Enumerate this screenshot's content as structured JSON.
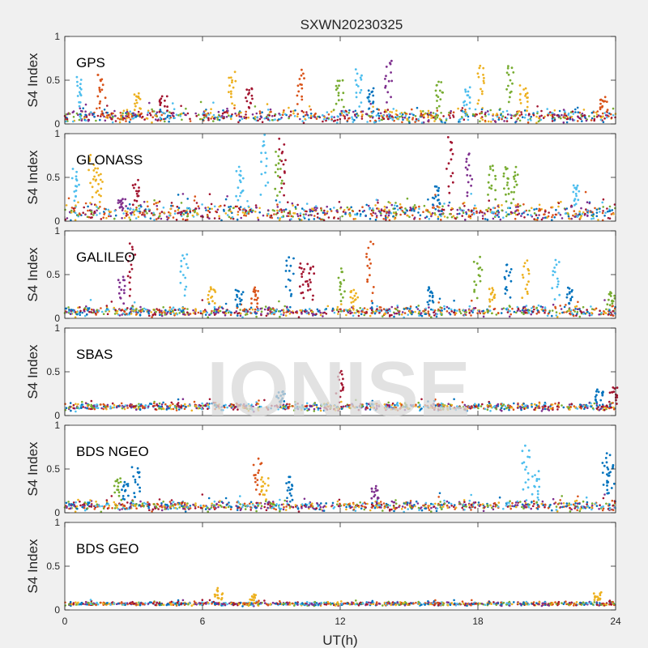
{
  "figure": {
    "title": "SXWN20230325",
    "watermark": "IONISE",
    "xlabel": "UT(h)",
    "background": "#f0f0f0",
    "axes_background": "#ffffff",
    "watermark_color": "#d9d9d9"
  },
  "chart_data": {
    "type": "scatter",
    "title": "SXWN20230325",
    "xlabel": "UT(h)",
    "ylabel": "S4 Index",
    "xlim": [
      0,
      24
    ],
    "ylim": [
      0,
      1
    ],
    "xticks": [
      "0",
      "6",
      "12",
      "18",
      "24"
    ],
    "yticks": [
      "0",
      "0.5",
      "1"
    ],
    "grid": false,
    "palette": [
      "#0072BD",
      "#D95319",
      "#EDB120",
      "#7E2F8E",
      "#77AC30",
      "#4DBEEE",
      "#A2142F"
    ],
    "panels": [
      {
        "label": "GPS",
        "baseline": 0.09,
        "noise": 0.045,
        "spikes": [
          {
            "x": 0.7,
            "y": 0.52,
            "c": 5
          },
          {
            "x": 1.6,
            "y": 0.57,
            "c": 1
          },
          {
            "x": 3.2,
            "y": 0.35,
            "c": 2
          },
          {
            "x": 4.3,
            "y": 0.32,
            "c": 6
          },
          {
            "x": 7.3,
            "y": 0.57,
            "c": 2
          },
          {
            "x": 8.0,
            "y": 0.42,
            "c": 6
          },
          {
            "x": 10.3,
            "y": 0.6,
            "c": 1
          },
          {
            "x": 12.0,
            "y": 0.52,
            "c": 4
          },
          {
            "x": 12.8,
            "y": 0.6,
            "c": 5
          },
          {
            "x": 13.3,
            "y": 0.39,
            "c": 0
          },
          {
            "x": 14.1,
            "y": 0.72,
            "c": 3
          },
          {
            "x": 16.3,
            "y": 0.48,
            "c": 4
          },
          {
            "x": 17.5,
            "y": 0.4,
            "c": 5
          },
          {
            "x": 18.1,
            "y": 0.68,
            "c": 2
          },
          {
            "x": 19.4,
            "y": 0.68,
            "c": 4
          },
          {
            "x": 20.0,
            "y": 0.42,
            "c": 2
          },
          {
            "x": 23.5,
            "y": 0.3,
            "c": 1
          }
        ]
      },
      {
        "label": "GLONASS",
        "baseline": 0.1,
        "noise": 0.06,
        "spikes": [
          {
            "x": 0.5,
            "y": 0.58,
            "c": 5
          },
          {
            "x": 1.2,
            "y": 0.76,
            "c": 2
          },
          {
            "x": 1.5,
            "y": 0.62,
            "c": 2
          },
          {
            "x": 2.5,
            "y": 0.25,
            "c": 3
          },
          {
            "x": 3.1,
            "y": 0.45,
            "c": 6
          },
          {
            "x": 7.6,
            "y": 0.6,
            "c": 5
          },
          {
            "x": 8.7,
            "y": 0.97,
            "c": 5
          },
          {
            "x": 9.3,
            "y": 0.78,
            "c": 4
          },
          {
            "x": 9.5,
            "y": 0.92,
            "c": 6
          },
          {
            "x": 16.2,
            "y": 0.4,
            "c": 0
          },
          {
            "x": 16.8,
            "y": 0.96,
            "c": 6
          },
          {
            "x": 17.6,
            "y": 0.77,
            "c": 3
          },
          {
            "x": 18.6,
            "y": 0.65,
            "c": 4
          },
          {
            "x": 19.2,
            "y": 0.62,
            "c": 4
          },
          {
            "x": 19.6,
            "y": 0.6,
            "c": 4
          },
          {
            "x": 22.3,
            "y": 0.42,
            "c": 5
          }
        ]
      },
      {
        "label": "GALILEO",
        "baseline": 0.08,
        "noise": 0.035,
        "spikes": [
          {
            "x": 2.5,
            "y": 0.48,
            "c": 3
          },
          {
            "x": 2.9,
            "y": 0.84,
            "c": 6
          },
          {
            "x": 5.2,
            "y": 0.75,
            "c": 5
          },
          {
            "x": 6.4,
            "y": 0.36,
            "c": 2
          },
          {
            "x": 7.6,
            "y": 0.33,
            "c": 0
          },
          {
            "x": 8.3,
            "y": 0.35,
            "c": 1
          },
          {
            "x": 9.8,
            "y": 0.7,
            "c": 0
          },
          {
            "x": 10.4,
            "y": 0.62,
            "c": 6
          },
          {
            "x": 10.7,
            "y": 0.62,
            "c": 6
          },
          {
            "x": 12.1,
            "y": 0.55,
            "c": 4
          },
          {
            "x": 12.6,
            "y": 0.33,
            "c": 2
          },
          {
            "x": 13.3,
            "y": 0.87,
            "c": 1
          },
          {
            "x": 15.9,
            "y": 0.35,
            "c": 0
          },
          {
            "x": 18.0,
            "y": 0.68,
            "c": 4
          },
          {
            "x": 18.6,
            "y": 0.35,
            "c": 2
          },
          {
            "x": 19.3,
            "y": 0.62,
            "c": 0
          },
          {
            "x": 20.1,
            "y": 0.65,
            "c": 2
          },
          {
            "x": 21.4,
            "y": 0.66,
            "c": 5
          },
          {
            "x": 22.0,
            "y": 0.35,
            "c": 0
          },
          {
            "x": 23.8,
            "y": 0.3,
            "c": 4
          }
        ]
      },
      {
        "label": "SBAS",
        "baseline": 0.1,
        "noise": 0.025,
        "spikes": [
          {
            "x": 12.0,
            "y": 0.5,
            "c": 6
          },
          {
            "x": 9.4,
            "y": 0.28,
            "c": 0
          },
          {
            "x": 23.3,
            "y": 0.3,
            "c": 0
          },
          {
            "x": 23.9,
            "y": 0.32,
            "c": 6
          }
        ]
      },
      {
        "label": "BDS NGEO",
        "baseline": 0.08,
        "noise": 0.035,
        "spikes": [
          {
            "x": 2.3,
            "y": 0.4,
            "c": 4
          },
          {
            "x": 2.6,
            "y": 0.35,
            "c": 0
          },
          {
            "x": 3.1,
            "y": 0.53,
            "c": 0
          },
          {
            "x": 8.4,
            "y": 0.6,
            "c": 1
          },
          {
            "x": 8.7,
            "y": 0.4,
            "c": 2
          },
          {
            "x": 9.8,
            "y": 0.4,
            "c": 0
          },
          {
            "x": 13.5,
            "y": 0.3,
            "c": 3
          },
          {
            "x": 20.1,
            "y": 0.75,
            "c": 5
          },
          {
            "x": 20.5,
            "y": 0.45,
            "c": 5
          },
          {
            "x": 23.6,
            "y": 0.67,
            "c": 0
          },
          {
            "x": 23.8,
            "y": 0.55,
            "c": 0
          }
        ]
      },
      {
        "label": "BDS GEO",
        "baseline": 0.07,
        "noise": 0.012,
        "spikes": [
          {
            "x": 6.7,
            "y": 0.24,
            "c": 2
          },
          {
            "x": 8.2,
            "y": 0.16,
            "c": 2
          },
          {
            "x": 23.2,
            "y": 0.19,
            "c": 2
          }
        ]
      }
    ]
  }
}
